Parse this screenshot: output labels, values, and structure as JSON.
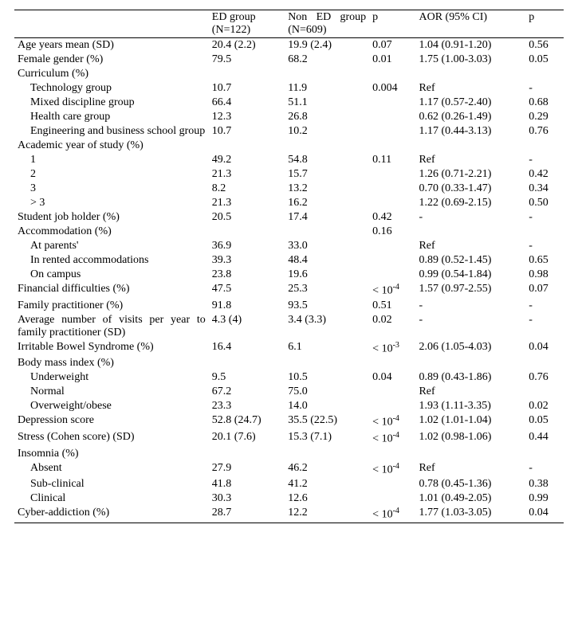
{
  "header": {
    "ed_group": "ED group (N=122)",
    "non_ed_group": "Non ED group (N=609)",
    "p1": "p",
    "aor": "AOR (95% CI)",
    "p2": "p"
  },
  "rows": [
    {
      "label": "Age years mean (SD)",
      "ed": "20.4 (2.2)",
      "non": "19.9 (2.4)",
      "p1": "0.07",
      "aor": "1.04 (0.91-1.20)",
      "p2": "0.56"
    },
    {
      "label": "Female gender (%)",
      "ed": "79.5",
      "non": "68.2",
      "p1": "0.01",
      "aor": "1.75 (1.00-3.03)",
      "p2": "0.05"
    },
    {
      "label": "Curriculum (%)",
      "ed": "",
      "non": "",
      "p1": "",
      "aor": "",
      "p2": ""
    },
    {
      "label": "Technology group",
      "indent": true,
      "ed": "10.7",
      "non": "11.9",
      "p1": "0.004",
      "aor": "Ref",
      "p2": "-"
    },
    {
      "label": "Mixed discipline group",
      "indent": true,
      "ed": "66.4",
      "non": "51.1",
      "p1": "",
      "aor": "1.17 (0.57-2.40)",
      "p2": "0.68"
    },
    {
      "label": "Health care group",
      "indent": true,
      "ed": "12.3",
      "non": "26.8",
      "p1": "",
      "aor": "0.62 (0.26-1.49)",
      "p2": "0.29"
    },
    {
      "label": "Engineering and business school group",
      "indent": true,
      "justify": true,
      "ed": "10.7",
      "non": "10.2",
      "p1": "",
      "aor": "1.17 (0.44-3.13)",
      "p2": "0.76"
    },
    {
      "label": "Academic year of study (%)",
      "ed": "",
      "non": "",
      "p1": "",
      "aor": "",
      "p2": ""
    },
    {
      "label": "1",
      "indent": true,
      "ed": "49.2",
      "non": "54.8",
      "p1": "0.11",
      "aor": "Ref",
      "p2": "-"
    },
    {
      "label": "2",
      "indent": true,
      "ed": "21.3",
      "non": "15.7",
      "p1": "",
      "aor": "1.26 (0.71-2.21)",
      "p2": "0.42"
    },
    {
      "label": "3",
      "indent": true,
      "ed": "8.2",
      "non": "13.2",
      "p1": "",
      "aor": "0.70 (0.33-1.47)",
      "p2": "0.34"
    },
    {
      "label": "> 3",
      "indent": true,
      "ed": "21.3",
      "non": "16.2",
      "p1": "",
      "aor": "1.22 (0.69-2.15)",
      "p2": "0.50"
    },
    {
      "label": "Student job holder (%)",
      "ed": "20.5",
      "non": "17.4",
      "p1": "0.42",
      "aor": "-",
      "p2": "-"
    },
    {
      "label": "Accommodation (%)",
      "ed": "",
      "non": "",
      "p1": "0.16",
      "aor": "",
      "p2": ""
    },
    {
      "label": "At parents'",
      "indent": true,
      "ed": "36.9",
      "non": "33.0",
      "p1": "",
      "aor": "Ref",
      "p2": "-"
    },
    {
      "label": "In rented accommodations",
      "indent": true,
      "ed": "39.3",
      "non": "48.4",
      "p1": "",
      "aor": "0.89 (0.52-1.45)",
      "p2": "0.65"
    },
    {
      "label": "On campus",
      "indent": true,
      "ed": "23.8",
      "non": "19.6",
      "p1": "",
      "aor": "0.99 (0.54-1.84)",
      "p2": "0.98"
    },
    {
      "label": "Financial difficulties (%)",
      "ed": "47.5",
      "non": "25.3",
      "p1_html": "< 10<sup>-4</sup>",
      "aor": "1.57 (0.97-2.55)",
      "p2": "0.07"
    },
    {
      "label": "Family practitioner (%)",
      "ed": "91.8",
      "non": "93.5",
      "p1": "0.51",
      "aor": "-",
      "p2": "-"
    },
    {
      "label": "Average number of visits per year to family practitioner (SD)",
      "justify": true,
      "ed": "4.3 (4)",
      "non": "3.4 (3.3)",
      "p1": "0.02",
      "aor": "-",
      "p2": "-"
    },
    {
      "label": "Irritable Bowel Syndrome (%)",
      "ed": "16.4",
      "non": "6.1",
      "p1_html": "< 10<sup>-3</sup>",
      "aor": "2.06 (1.05-4.03)",
      "p2": "0.04"
    },
    {
      "label": "Body mass index (%)",
      "ed": "",
      "non": "",
      "p1": "",
      "aor": "",
      "p2": ""
    },
    {
      "label": "Underweight",
      "indent": true,
      "ed": "9.5",
      "non": "10.5",
      "p1": "0.04",
      "aor": "0.89 (0.43-1.86)",
      "p2": "0.76"
    },
    {
      "label": "Normal",
      "indent": true,
      "ed": "67.2",
      "non": "75.0",
      "p1": "",
      "aor": "Ref",
      "p2": ""
    },
    {
      "label": "Overweight/obese",
      "indent": true,
      "ed": "23.3",
      "non": "14.0",
      "p1": "",
      "aor": "1.93 (1.11-3.35)",
      "p2": "0.02"
    },
    {
      "label": "Depression score",
      "ed": "52.8 (24.7)",
      "non": "35.5 (22.5)",
      "p1_html": "< 10<sup>-4</sup>",
      "aor": "1.02 (1.01-1.04)",
      "p2": "0.05"
    },
    {
      "label": "Stress (Cohen score) (SD)",
      "ed": "20.1 (7.6)",
      "non": "15.3 (7.1)",
      "p1_html": "< 10<sup>-4</sup>",
      "aor": "1.02 (0.98-1.06)",
      "p2": "0.44"
    },
    {
      "label": "Insomnia (%)",
      "ed": "",
      "non": "",
      "p1": "",
      "aor": "",
      "p2": ""
    },
    {
      "label": "Absent",
      "indent": true,
      "ed": "27.9",
      "non": "46.2",
      "p1_html": "< 10<sup>-4</sup>",
      "aor": "Ref",
      "p2": "-"
    },
    {
      "label": "Sub-clinical",
      "indent": true,
      "ed": "41.8",
      "non": "41.2",
      "p1": "",
      "aor": "0.78 (0.45-1.36)",
      "p2": "0.38"
    },
    {
      "label": "Clinical",
      "indent": true,
      "ed": "30.3",
      "non": "12.6",
      "p1": "",
      "aor": "1.01 (0.49-2.05)",
      "p2": "0.99"
    },
    {
      "label": "Cyber-addiction (%)",
      "ed": "28.7",
      "non": "12.2",
      "p1_html": "< 10<sup>-4</sup>",
      "aor": "1.77 (1.03-3.05)",
      "p2": "0.04"
    }
  ]
}
